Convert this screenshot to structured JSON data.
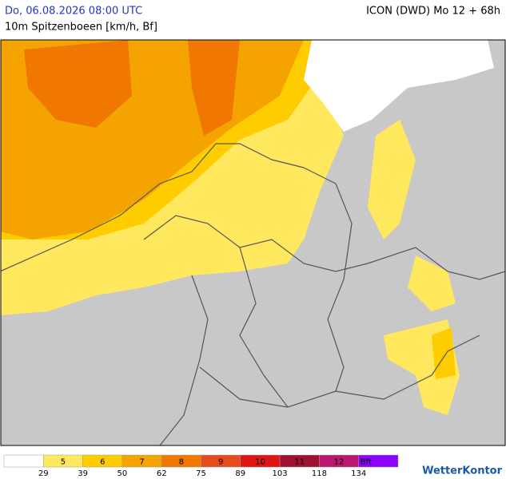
{
  "header": {
    "datetime": "Do, 06.08.2026 08:00 UTC",
    "model": "ICON (DWD) Mo 12 + 68h",
    "subtitle": "10m Spitzenboeen [km/h, Bf]"
  },
  "legend": {
    "classes": [
      {
        "label": null,
        "color": "#ffffff"
      },
      {
        "label": "5",
        "color": "#ffe75e"
      },
      {
        "label": "6",
        "color": "#ffcc00"
      },
      {
        "label": "7",
        "color": "#f5a300"
      },
      {
        "label": "8",
        "color": "#f07800"
      },
      {
        "label": "9",
        "color": "#e64b1e"
      },
      {
        "label": "10",
        "color": "#e01414"
      },
      {
        "label": "11",
        "color": "#a01030"
      },
      {
        "label": "12",
        "color": "#b8186e"
      },
      {
        "label": "Bft",
        "color": "#8c00ff"
      }
    ],
    "thresholds": [
      "29",
      "39",
      "50",
      "62",
      "75",
      "89",
      "103",
      "118",
      "134"
    ]
  },
  "brand": "WetterKontor"
}
